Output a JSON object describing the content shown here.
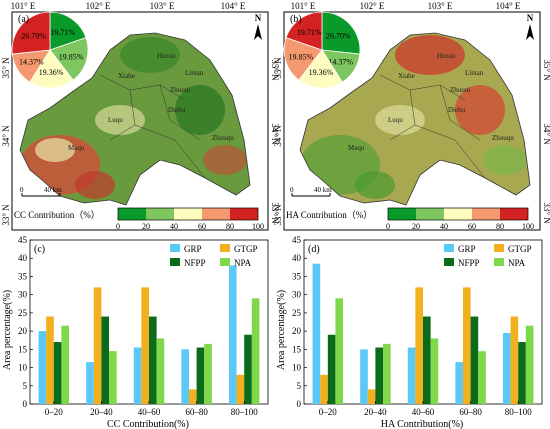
{
  "colors": {
    "GRP": "#5bc8f5",
    "GTGP": "#f2b01e",
    "NFPP": "#0b6b1a",
    "NPA": "#7ed84a",
    "legend_0_20": "#0a9a2a",
    "legend_20_40": "#7dc660",
    "legend_40_60": "#fffcc0",
    "legend_60_80": "#f59a70",
    "legend_80_100": "#d42222"
  },
  "maps": [
    {
      "label": "(a)",
      "top_ticks": [
        "101° E",
        "102° E",
        "103° E",
        "104° E"
      ],
      "left_ticks": [
        "35° N",
        "34° N",
        "33° N"
      ],
      "right_ticks": [
        "35° N",
        "34° N",
        "33° N"
      ],
      "north": "N",
      "scale_zero": "0",
      "scale_label": "40 km",
      "pie": [
        {
          "label": "19.71%",
          "value": 19.71,
          "color_key": "legend_0_20"
        },
        {
          "label": "19.85%",
          "value": 19.85,
          "color_key": "legend_20_40"
        },
        {
          "label": "19.36%",
          "value": 19.36,
          "color_key": "legend_40_60"
        },
        {
          "label": "14.37%",
          "value": 14.37,
          "color_key": "legend_60_80"
        },
        {
          "label": "26.70%",
          "value": 26.7,
          "color_key": "legend_80_100"
        }
      ],
      "places": [
        "Hezuo",
        "Xiahe",
        "Lintan",
        "Zhuoni",
        "Luqu",
        "Maqu",
        "Diebu",
        "Zhouqu"
      ],
      "legend_title": "CC Contribution（%）",
      "legend_ticks": [
        "0",
        "20",
        "40",
        "60",
        "80",
        "100"
      ]
    },
    {
      "label": "(b)",
      "top_ticks": [
        "101° E",
        "102° E",
        "103° E",
        "104° E"
      ],
      "left_ticks": [
        "35° N",
        "34° N",
        "33° N"
      ],
      "right_ticks": [
        "35° N",
        "34° N",
        "33° N"
      ],
      "north": "N",
      "scale_zero": "0",
      "scale_label": "40 km",
      "pie": [
        {
          "label": "26.70%",
          "value": 26.7,
          "color_key": "legend_0_20"
        },
        {
          "label": "14.37%",
          "value": 14.37,
          "color_key": "legend_20_40"
        },
        {
          "label": "19.36%",
          "value": 19.36,
          "color_key": "legend_40_60"
        },
        {
          "label": "19.85%",
          "value": 19.85,
          "color_key": "legend_60_80"
        },
        {
          "label": "19.71%",
          "value": 19.71,
          "color_key": "legend_80_100"
        }
      ],
      "places": [
        "Hezuo",
        "Xiahe",
        "Lintan",
        "Zhuoni",
        "Luqu",
        "Maqu",
        "Diebu",
        "Zhouqu"
      ],
      "legend_title": "HA Contribution（%）",
      "legend_ticks": [
        "0",
        "20",
        "40",
        "60",
        "80",
        "100"
      ]
    }
  ],
  "chart_data": [
    {
      "type": "bar",
      "panel_label": "(c)",
      "categories": [
        "0–20",
        "20–40",
        "40–60",
        "60–80",
        "80–100"
      ],
      "series": [
        {
          "name": "GRP",
          "values": [
            20,
            11.5,
            15.5,
            15,
            38
          ]
        },
        {
          "name": "GTGP",
          "values": [
            24,
            32,
            32,
            4,
            8
          ]
        },
        {
          "name": "NFPP",
          "values": [
            17,
            24,
            24,
            15.5,
            19
          ]
        },
        {
          "name": "NPA",
          "values": [
            21.5,
            14.5,
            18,
            16.5,
            29
          ]
        }
      ],
      "xlabel": "CC Contribution(%)",
      "ylabel": "Area percentage(%)",
      "ylim": [
        0,
        45
      ],
      "yticks": [
        "0",
        "5",
        "10",
        "15",
        "20",
        "25",
        "30",
        "35",
        "40",
        "45"
      ],
      "legend": "top-right"
    },
    {
      "type": "bar",
      "panel_label": "(d)",
      "categories": [
        "0–20",
        "20–40",
        "40–60",
        "60–80",
        "80–100"
      ],
      "series": [
        {
          "name": "GRP",
          "values": [
            38.5,
            15,
            15.5,
            11.5,
            19.5
          ]
        },
        {
          "name": "GTGP",
          "values": [
            8,
            4,
            32,
            32,
            24
          ]
        },
        {
          "name": "NFPP",
          "values": [
            19,
            15.5,
            24,
            24,
            17
          ]
        },
        {
          "name": "NPA",
          "values": [
            29,
            16.5,
            18,
            14.5,
            21.5
          ]
        }
      ],
      "xlabel": "HA Contribution(%)",
      "ylabel": "Area percentage(%)",
      "ylim": [
        0,
        45
      ],
      "yticks": [
        "0",
        "5",
        "10",
        "15",
        "20",
        "25",
        "30",
        "35",
        "40",
        "45"
      ],
      "legend": "top-right"
    }
  ]
}
